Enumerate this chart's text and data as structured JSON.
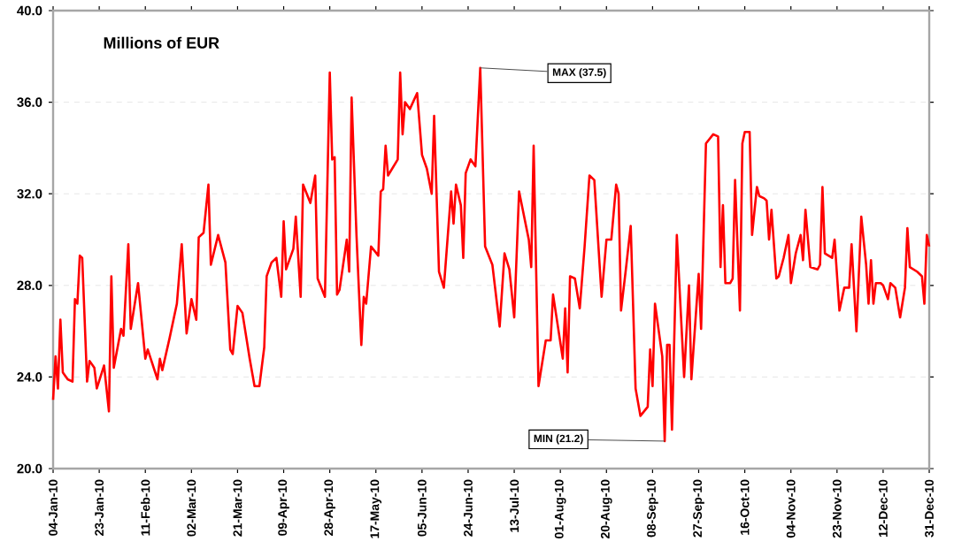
{
  "chart_data": {
    "type": "line",
    "title": "Millions of EUR",
    "x": [
      "2010-01-04",
      "2010-01-05",
      "2010-01-06",
      "2010-01-07",
      "2010-01-08",
      "2010-01-10",
      "2010-01-12",
      "2010-01-13",
      "2010-01-14",
      "2010-01-15",
      "2010-01-16",
      "2010-01-18",
      "2010-01-19",
      "2010-01-21",
      "2010-01-22",
      "2010-01-25",
      "2010-01-27",
      "2010-01-28",
      "2010-01-29",
      "2010-02-01",
      "2010-02-02",
      "2010-02-04",
      "2010-02-05",
      "2010-02-08",
      "2010-02-11",
      "2010-02-12",
      "2010-02-16",
      "2010-02-17",
      "2010-02-18",
      "2010-02-21",
      "2010-02-24",
      "2010-02-26",
      "2010-02-28",
      "2010-03-02",
      "2010-03-04",
      "2010-03-05",
      "2010-03-07",
      "2010-03-09",
      "2010-03-10",
      "2010-03-13",
      "2010-03-16",
      "2010-03-18",
      "2010-03-19",
      "2010-03-21",
      "2010-03-23",
      "2010-03-26",
      "2010-03-28",
      "2010-03-30",
      "2010-04-01",
      "2010-04-02",
      "2010-04-04",
      "2010-04-06",
      "2010-04-08",
      "2010-04-09",
      "2010-04-10",
      "2010-04-13",
      "2010-04-14",
      "2010-04-16",
      "2010-04-17",
      "2010-04-20",
      "2010-04-22",
      "2010-04-23",
      "2010-04-26",
      "2010-04-28",
      "2010-04-29",
      "2010-04-30",
      "2010-05-01",
      "2010-05-02",
      "2010-05-05",
      "2010-05-06",
      "2010-05-07",
      "2010-05-09",
      "2010-05-11",
      "2010-05-12",
      "2010-05-13",
      "2010-05-15",
      "2010-05-18",
      "2010-05-19",
      "2010-05-20",
      "2010-05-21",
      "2010-05-22",
      "2010-05-26",
      "2010-05-27",
      "2010-05-28",
      "2010-05-29",
      "2010-05-31",
      "2010-06-03",
      "2010-06-05",
      "2010-06-07",
      "2010-06-09",
      "2010-06-10",
      "2010-06-12",
      "2010-06-14",
      "2010-06-17",
      "2010-06-18",
      "2010-06-19",
      "2010-06-21",
      "2010-06-22",
      "2010-06-23",
      "2010-06-25",
      "2010-06-27",
      "2010-06-29",
      "2010-07-01",
      "2010-07-04",
      "2010-07-05",
      "2010-07-07",
      "2010-07-09",
      "2010-07-11",
      "2010-07-13",
      "2010-07-15",
      "2010-07-19",
      "2010-07-20",
      "2010-07-21",
      "2010-07-23",
      "2010-07-26",
      "2010-07-28",
      "2010-07-29",
      "2010-08-02",
      "2010-08-03",
      "2010-08-04",
      "2010-08-05",
      "2010-08-07",
      "2010-08-09",
      "2010-08-11",
      "2010-08-13",
      "2010-08-15",
      "2010-08-18",
      "2010-08-20",
      "2010-08-22",
      "2010-08-24",
      "2010-08-25",
      "2010-08-26",
      "2010-08-28",
      "2010-08-30",
      "2010-09-01",
      "2010-09-03",
      "2010-09-06",
      "2010-09-07",
      "2010-09-08",
      "2010-09-09",
      "2010-09-12",
      "2010-09-13",
      "2010-09-14",
      "2010-09-15",
      "2010-09-16",
      "2010-09-18",
      "2010-09-21",
      "2010-09-23",
      "2010-09-24",
      "2010-09-27",
      "2010-09-28",
      "2010-09-30",
      "2010-10-03",
      "2010-10-05",
      "2010-10-06",
      "2010-10-07",
      "2010-10-08",
      "2010-10-10",
      "2010-10-11",
      "2010-10-12",
      "2010-10-14",
      "2010-10-15",
      "2010-10-16",
      "2010-10-18",
      "2010-10-19",
      "2010-10-21",
      "2010-10-22",
      "2010-10-24",
      "2010-10-25",
      "2010-10-26",
      "2010-10-27",
      "2010-10-29",
      "2010-10-30",
      "2010-11-01",
      "2010-11-03",
      "2010-11-04",
      "2010-11-06",
      "2010-11-08",
      "2010-11-09",
      "2010-11-10",
      "2010-11-12",
      "2010-11-15",
      "2010-11-16",
      "2010-11-17",
      "2010-11-18",
      "2010-11-21",
      "2010-11-22",
      "2010-11-24",
      "2010-11-26",
      "2010-11-28",
      "2010-11-29",
      "2010-12-01",
      "2010-12-03",
      "2010-12-05",
      "2010-12-06",
      "2010-12-07",
      "2010-12-08",
      "2010-12-09",
      "2010-12-11",
      "2010-12-12",
      "2010-12-14",
      "2010-12-15",
      "2010-12-17",
      "2010-12-19",
      "2010-12-21",
      "2010-12-22",
      "2010-12-23",
      "2010-12-26",
      "2010-12-28",
      "2010-12-29",
      "2010-12-30",
      "2010-12-31"
    ],
    "series": [
      {
        "color": "#ff0000",
        "values": [
          23.0,
          24.9,
          23.5,
          26.5,
          24.2,
          23.9,
          23.8,
          27.4,
          27.2,
          29.3,
          29.2,
          23.8,
          24.7,
          24.4,
          23.5,
          24.5,
          22.5,
          28.4,
          24.4,
          26.1,
          25.8,
          29.8,
          26.1,
          28.1,
          24.8,
          25.2,
          23.9,
          24.8,
          24.3,
          25.7,
          27.2,
          29.8,
          25.9,
          27.4,
          26.5,
          30.1,
          30.3,
          32.4,
          28.9,
          30.2,
          29.0,
          25.2,
          25.0,
          27.1,
          26.8,
          24.8,
          23.6,
          23.6,
          25.3,
          28.4,
          29.0,
          29.2,
          27.5,
          30.8,
          28.7,
          29.6,
          31.0,
          27.5,
          32.4,
          31.6,
          32.8,
          28.3,
          27.5,
          37.3,
          33.5,
          33.6,
          27.6,
          27.8,
          30.0,
          28.6,
          36.2,
          30.2,
          25.4,
          27.5,
          27.2,
          29.7,
          29.3,
          32.1,
          32.2,
          34.1,
          32.8,
          33.5,
          37.3,
          34.6,
          36.0,
          35.7,
          36.4,
          33.7,
          33.1,
          32.0,
          35.4,
          28.6,
          27.9,
          32.1,
          30.7,
          32.4,
          31.5,
          29.2,
          32.9,
          33.5,
          33.2,
          37.5,
          29.7,
          28.9,
          28.0,
          26.2,
          29.4,
          28.7,
          26.6,
          32.1,
          30.0,
          28.8,
          34.1,
          23.6,
          25.6,
          25.6,
          27.6,
          24.8,
          27.0,
          24.2,
          28.4,
          28.3,
          27.0,
          29.7,
          32.8,
          32.6,
          27.5,
          30.0,
          30.0,
          32.4,
          32.0,
          26.9,
          28.7,
          30.6,
          23.5,
          22.3,
          22.7,
          25.2,
          23.6,
          27.2,
          24.9,
          21.2,
          25.4,
          25.4,
          21.7,
          30.2,
          24.0,
          28.0,
          23.9,
          28.5,
          26.1,
          34.2,
          34.6,
          34.5,
          28.8,
          31.5,
          28.1,
          28.1,
          28.3,
          32.6,
          26.9,
          34.2,
          34.7,
          34.7,
          30.2,
          32.3,
          31.9,
          31.8,
          31.7,
          30.0,
          31.3,
          28.3,
          28.4,
          29.2,
          30.2,
          28.1,
          29.4,
          30.2,
          29.1,
          31.3,
          28.8,
          28.7,
          28.9,
          32.3,
          29.4,
          29.2,
          30.0,
          26.9,
          27.9,
          27.9,
          29.8,
          26.0,
          31.0,
          28.9,
          27.2,
          29.1,
          27.2,
          28.1,
          28.1,
          28.0,
          27.4,
          28.1,
          27.9,
          26.6,
          27.9,
          30.5,
          28.8,
          28.6,
          28.4,
          27.2,
          30.2,
          29.7
        ]
      }
    ],
    "xlim": [
      "2010-01-04",
      "2010-12-31"
    ],
    "xticks": [
      {
        "value": "2010-01-04",
        "label": "04-Jan-10"
      },
      {
        "value": "2010-01-23",
        "label": "23-Jan-10"
      },
      {
        "value": "2010-02-11",
        "label": "11-Feb-10"
      },
      {
        "value": "2010-03-02",
        "label": "02-Mar-10"
      },
      {
        "value": "2010-03-21",
        "label": "21-Mar-10"
      },
      {
        "value": "2010-04-09",
        "label": "09-Apr-10"
      },
      {
        "value": "2010-04-28",
        "label": "28-Apr-10"
      },
      {
        "value": "2010-05-17",
        "label": "17-May-10"
      },
      {
        "value": "2010-06-05",
        "label": "05-Jun-10"
      },
      {
        "value": "2010-06-24",
        "label": "24-Jun-10"
      },
      {
        "value": "2010-07-13",
        "label": "13-Jul-10"
      },
      {
        "value": "2010-08-01",
        "label": "01-Aug-10"
      },
      {
        "value": "2010-08-20",
        "label": "20-Aug-10"
      },
      {
        "value": "2010-09-08",
        "label": "08-Sep-10"
      },
      {
        "value": "2010-09-27",
        "label": "27-Sep-10"
      },
      {
        "value": "2010-10-16",
        "label": "16-Oct-10"
      },
      {
        "value": "2010-11-04",
        "label": "04-Nov-10"
      },
      {
        "value": "2010-11-23",
        "label": "23-Nov-10"
      },
      {
        "value": "2010-12-12",
        "label": "12-Dec-10"
      },
      {
        "value": "2010-12-31",
        "label": "31-Dec-10"
      }
    ],
    "ylim": [
      20,
      40
    ],
    "yticks": [
      {
        "value": 20,
        "label": "20.0"
      },
      {
        "value": 24,
        "label": "24.0"
      },
      {
        "value": 28,
        "label": "28.0"
      },
      {
        "value": 32,
        "label": "32.0"
      },
      {
        "value": 36,
        "label": "36.0"
      },
      {
        "value": 40,
        "label": "40.0"
      }
    ],
    "grid": "y",
    "marker": "none",
    "line_style": "solid",
    "annotations": [
      {
        "text": "MAX (37.5)",
        "x": "2010-06-29",
        "y": 37.5
      },
      {
        "text": "MIN (21.2)",
        "x": "2010-09-13",
        "y": 21.2
      }
    ]
  }
}
